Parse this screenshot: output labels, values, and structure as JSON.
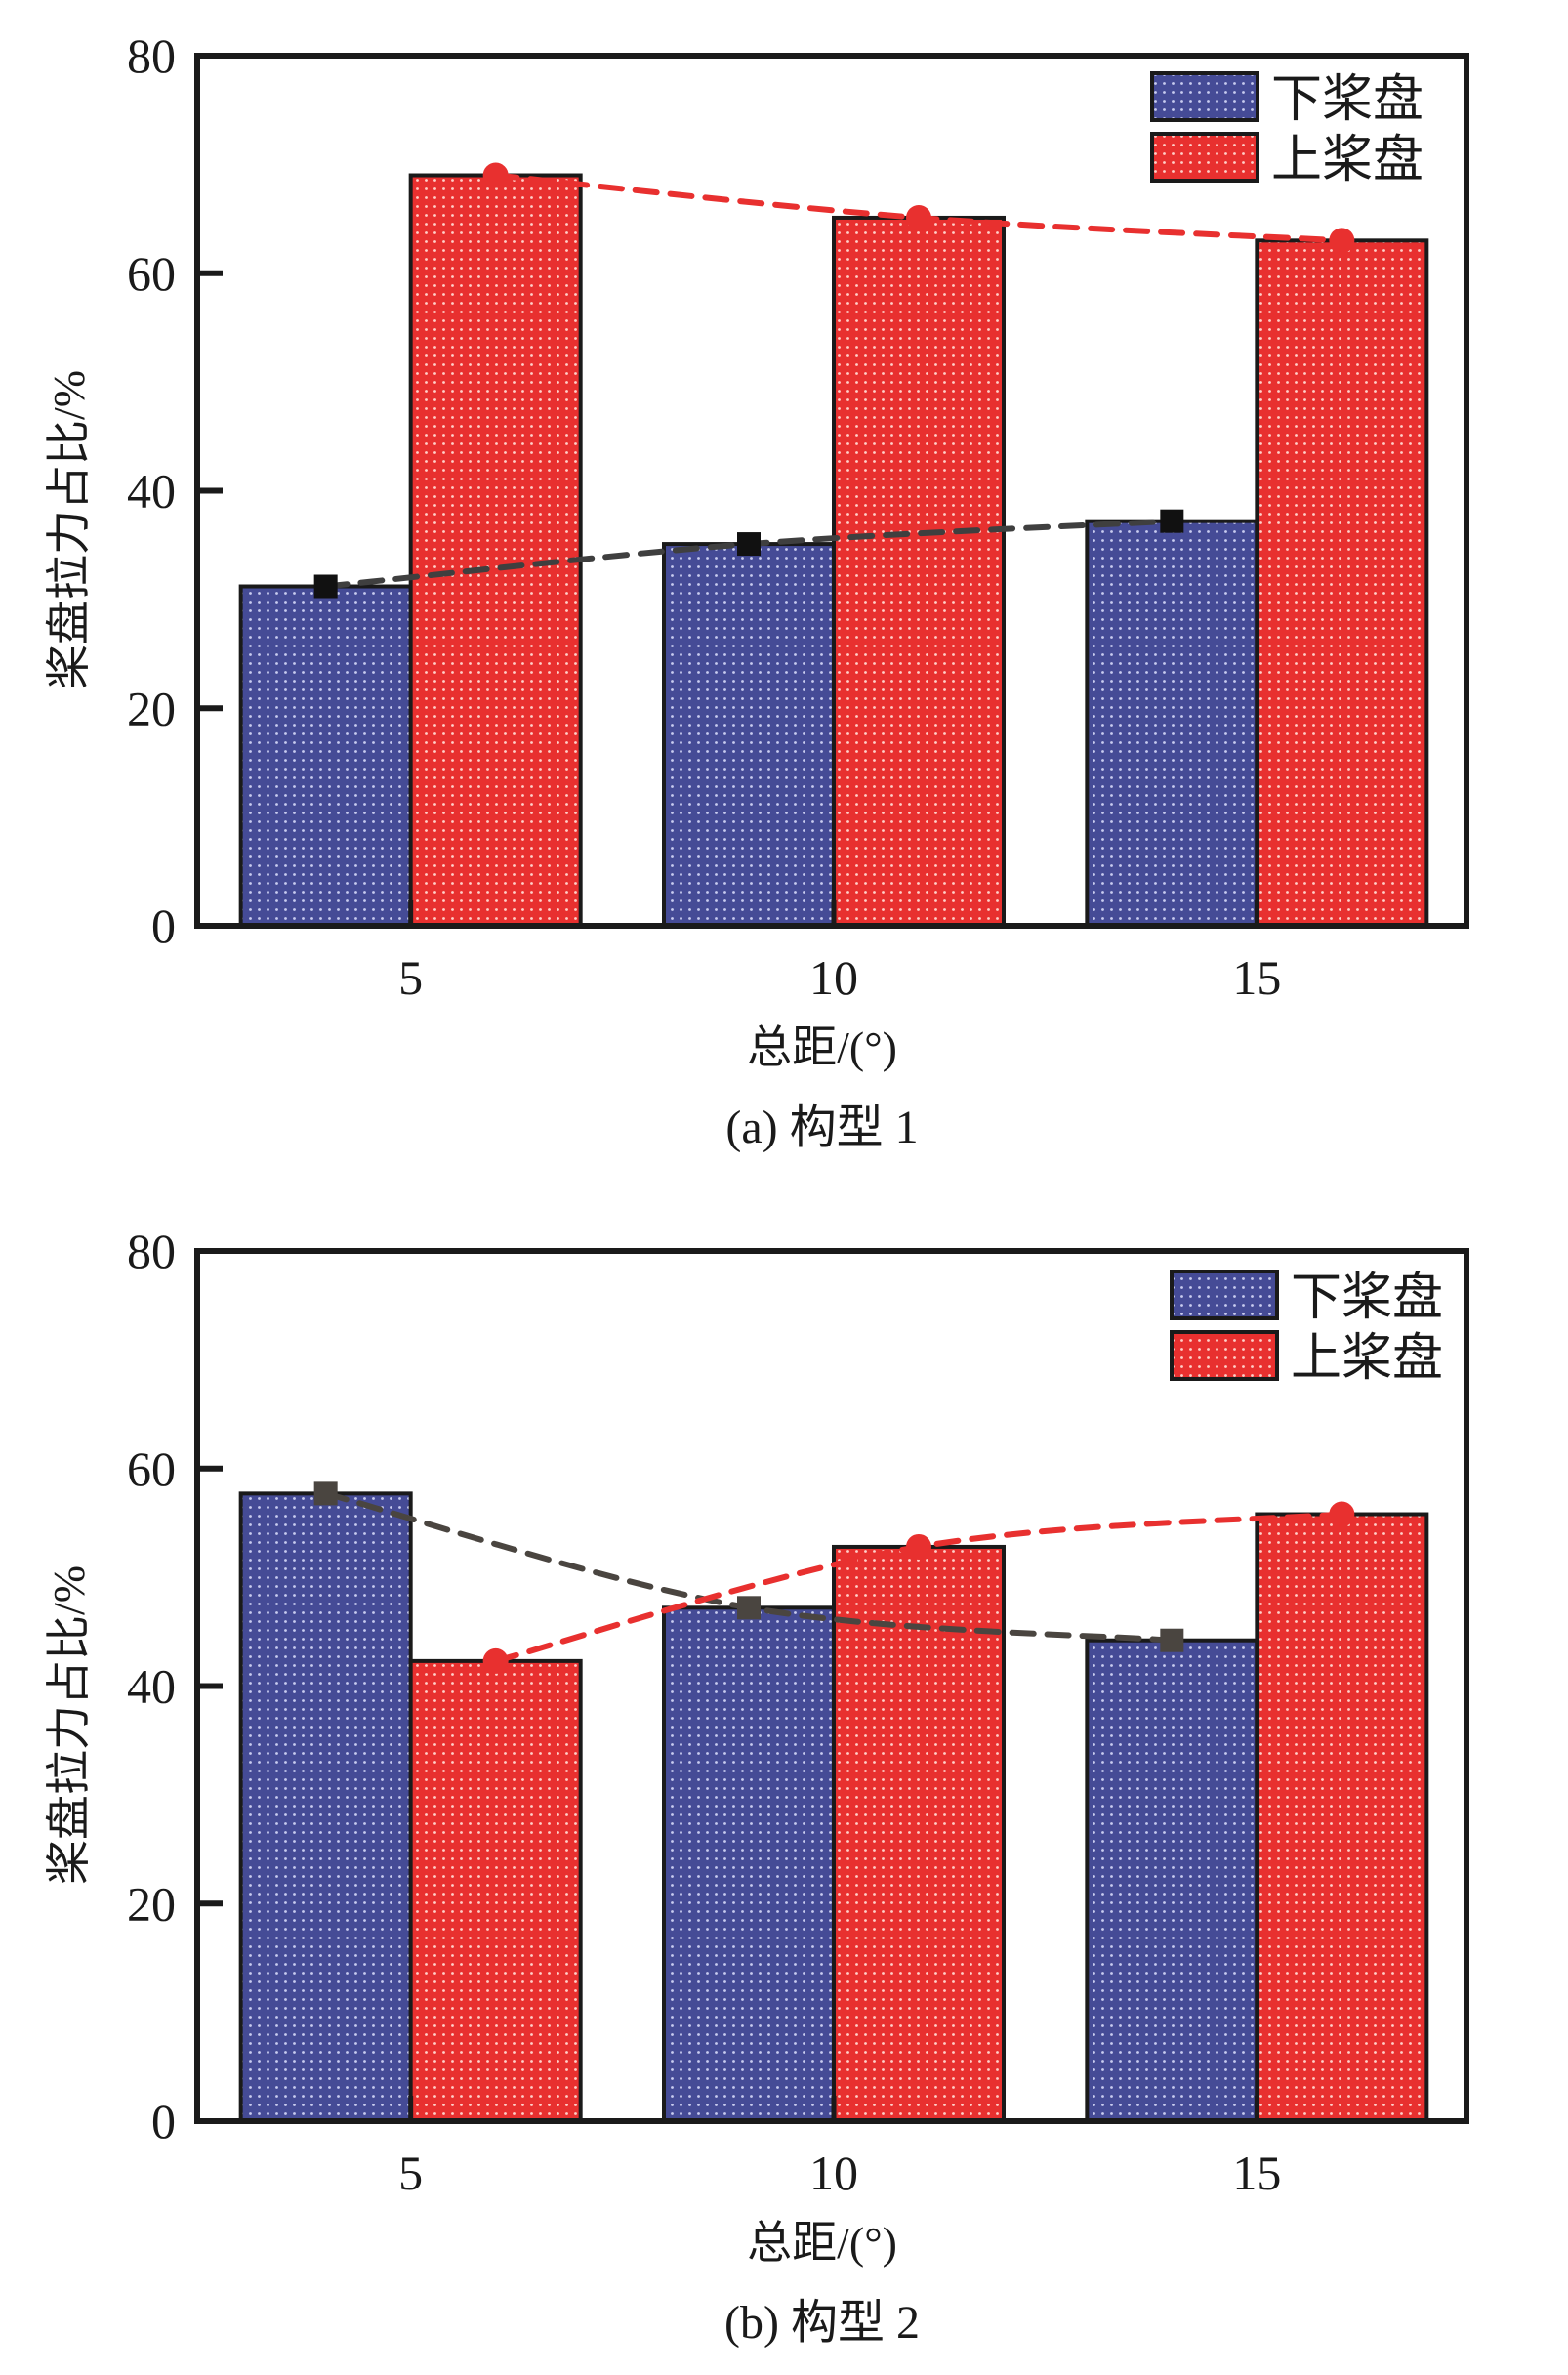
{
  "chart_data": [
    {
      "id": "a",
      "type": "bar",
      "caption": "(a) 构型 1",
      "xlabel": "总距/(°)",
      "ylabel": "桨盘拉力占比/%",
      "categories": [
        "5",
        "10",
        "15"
      ],
      "yticks": [
        "0",
        "20",
        "40",
        "60",
        "80"
      ],
      "ylim": [
        0,
        80
      ],
      "grid": false,
      "legend_position": "top-right",
      "series": [
        {
          "name": "下桨盘",
          "color": "#454b96",
          "marker": "square",
          "line_color": "#111111",
          "values": [
            31.2,
            35.1,
            37.2
          ]
        },
        {
          "name": "上桨盘",
          "color": "#e8302f",
          "marker": "circle",
          "line_color": "#e8302f",
          "values": [
            69.0,
            65.1,
            63.0
          ]
        }
      ]
    },
    {
      "id": "b",
      "type": "bar",
      "caption": "(b) 构型 2",
      "xlabel": "总距/(°)",
      "ylabel": "桨盘拉力占比/%",
      "categories": [
        "5",
        "10",
        "15"
      ],
      "yticks": [
        "0",
        "20",
        "40",
        "60",
        "80"
      ],
      "ylim": [
        0,
        80
      ],
      "grid": false,
      "legend_position": "top-right",
      "series": [
        {
          "name": "下桨盘",
          "color": "#454b96",
          "marker": "square",
          "line_color": "#4a4540",
          "values": [
            57.7,
            47.2,
            44.2
          ]
        },
        {
          "name": "上桨盘",
          "color": "#e8302f",
          "marker": "circle",
          "line_color": "#e8302f",
          "values": [
            42.3,
            52.8,
            55.8
          ]
        }
      ]
    }
  ]
}
